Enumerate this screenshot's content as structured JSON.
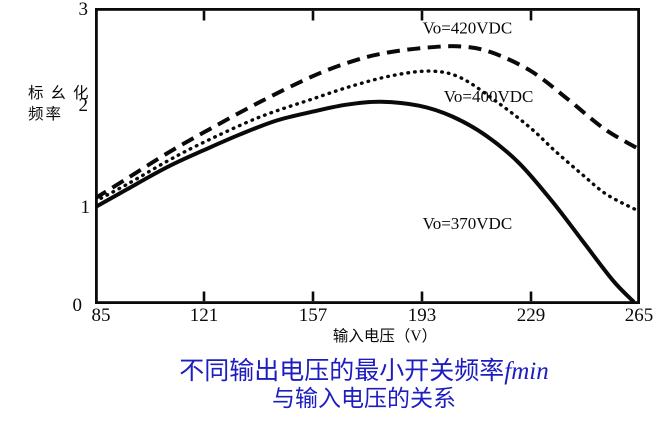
{
  "figure": {
    "caption": {
      "line1_text": "不同输出电压的最小开关频率",
      "line1_italic": "fmin",
      "line2": "与输入电压的关系",
      "color": "#1d1dc0"
    }
  },
  "chart_data": {
    "type": "line",
    "title": "不同输出电压的最小开关频率fmin与输入电压的关系",
    "xlabel": "输入电压（V）",
    "ylabel": "标幺化频率",
    "ylabel_lines": [
      "标幺化",
      "频率"
    ],
    "xlim": [
      85,
      265
    ],
    "ylim": [
      0,
      3
    ],
    "x_ticks": [
      85,
      121,
      157,
      193,
      229,
      265
    ],
    "y_ticks": [
      0,
      1,
      2,
      3
    ],
    "grid": false,
    "legend_position": "inline-annotations",
    "axis_color": "#0a0a0a",
    "curve_color": "#0a0a0a",
    "series": [
      {
        "name": "Vo=420VDC",
        "style": "dashed",
        "label_pos": {
          "x": 208,
          "y": 2.8
        },
        "points": [
          [
            85,
            1.07
          ],
          [
            96,
            1.28
          ],
          [
            109,
            1.53
          ],
          [
            121,
            1.74
          ],
          [
            139,
            2.04
          ],
          [
            157,
            2.31
          ],
          [
            171,
            2.47
          ],
          [
            182,
            2.55
          ],
          [
            195,
            2.6
          ],
          [
            206,
            2.61
          ],
          [
            216,
            2.55
          ],
          [
            229,
            2.36
          ],
          [
            241,
            2.08
          ],
          [
            253,
            1.78
          ],
          [
            264,
            1.58
          ]
        ]
      },
      {
        "name": "Vo=400VDC",
        "style": "dotted",
        "label_pos": {
          "x": 215,
          "y": 2.11
        },
        "points": [
          [
            85,
            1.04
          ],
          [
            96,
            1.22
          ],
          [
            109,
            1.45
          ],
          [
            121,
            1.64
          ],
          [
            139,
            1.89
          ],
          [
            157,
            2.08
          ],
          [
            171,
            2.22
          ],
          [
            184,
            2.32
          ],
          [
            196,
            2.36
          ],
          [
            206,
            2.29
          ],
          [
            219,
            2.02
          ],
          [
            229,
            1.78
          ],
          [
            237,
            1.55
          ],
          [
            246,
            1.31
          ],
          [
            254,
            1.11
          ],
          [
            264,
            0.95
          ]
        ]
      },
      {
        "name": "Vo=370VDC",
        "style": "solid",
        "label_pos": {
          "x": 208,
          "y": 0.82
        },
        "points": [
          [
            85,
            0.98
          ],
          [
            96,
            1.17
          ],
          [
            109,
            1.39
          ],
          [
            121,
            1.56
          ],
          [
            133,
            1.72
          ],
          [
            145,
            1.86
          ],
          [
            157,
            1.95
          ],
          [
            168,
            2.02
          ],
          [
            179,
            2.05
          ],
          [
            192,
            2.01
          ],
          [
            203,
            1.9
          ],
          [
            214,
            1.71
          ],
          [
            225,
            1.43
          ],
          [
            236,
            1.04
          ],
          [
            246,
            0.64
          ],
          [
            256,
            0.24
          ],
          [
            263,
            0.02
          ]
        ]
      }
    ]
  }
}
